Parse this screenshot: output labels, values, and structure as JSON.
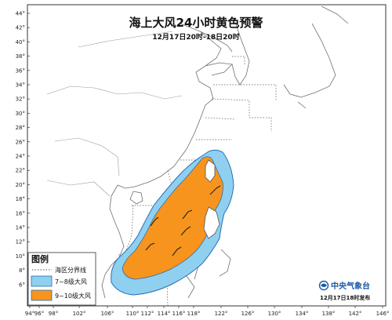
{
  "title": "海上大风24小时黄色预警",
  "subtitle": "12月17日20时-18日20时",
  "latitude_labels": [
    "44°",
    "42°",
    "40°",
    "38°",
    "36°",
    "34°",
    "32°",
    "30°",
    "28°",
    "26°",
    "24°",
    "22°",
    "20°",
    "18°",
    "16°",
    "14°",
    "12°",
    "10°",
    "8°",
    "6°"
  ],
  "longitude_labels": [
    "94°",
    "96°",
    "98°",
    "102°",
    "106°",
    "110°",
    "112°",
    "114°",
    "116°",
    "118°",
    "122°",
    "126°",
    "130°",
    "134°",
    "138°",
    "142°",
    "146°"
  ],
  "legend": {
    "title": "图例",
    "boundary_label": "海区分界线",
    "items": [
      {
        "label": "7~8级大风",
        "color": "#8fd0f0"
      },
      {
        "label": "9~10级大风",
        "color": "#f7941d"
      }
    ]
  },
  "agency": {
    "name": "中央气象台",
    "issued": "12月17日18时发布"
  },
  "colors": {
    "coastline": "#6f6f6f",
    "boundary": "#555555",
    "wind_7_8": "#8fd0f0",
    "wind_9_10": "#f7941d",
    "zone_outline": "#2a6db5",
    "agency_blue": "#1a5aa8"
  },
  "wind_barb_icons": [
    "wind-barb-icon",
    "wind-barb-icon",
    "wind-barb-icon",
    "wind-barb-icon",
    "wind-barb-icon",
    "wind-barb-icon"
  ]
}
